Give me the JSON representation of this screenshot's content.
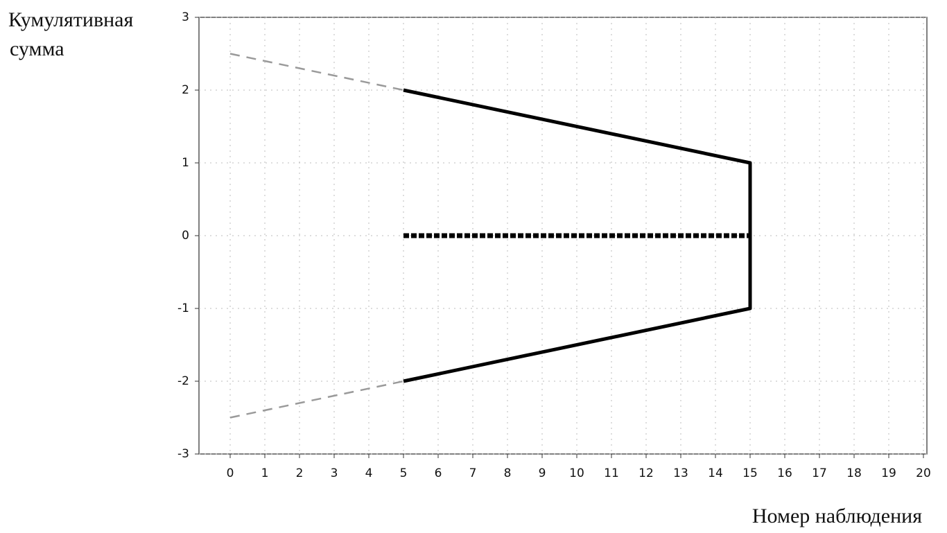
{
  "chart_data": {
    "type": "line",
    "ylabel": [
      "Кумулятивная",
      "сумма"
    ],
    "xlabel": "Номер наблюдения",
    "xlim": [
      -0.9,
      20.1
    ],
    "ylim": [
      -3,
      3
    ],
    "xticks": [
      0,
      1,
      2,
      3,
      4,
      5,
      6,
      7,
      8,
      9,
      10,
      11,
      12,
      13,
      14,
      15,
      16,
      17,
      18,
      19,
      20
    ],
    "yticks": [
      -3,
      -2,
      -1,
      0,
      1,
      2,
      3
    ],
    "grid": true,
    "series": [
      {
        "color": "#9a9a9a",
        "style": "dashed",
        "x": [
          0,
          5
        ],
        "values": [
          2.5,
          2
        ]
      },
      {
        "color": "#9a9a9a",
        "style": "dashed",
        "x": [
          0,
          5
        ],
        "values": [
          -2.5,
          -2
        ]
      },
      {
        "color": "#000000",
        "style": "solid",
        "x": [
          5,
          15,
          15,
          5
        ],
        "values": [
          2,
          1,
          -1,
          -2
        ]
      },
      {
        "color": "#000000",
        "style": "dotted",
        "x": [
          5,
          15
        ],
        "values": [
          0,
          0
        ]
      }
    ]
  }
}
